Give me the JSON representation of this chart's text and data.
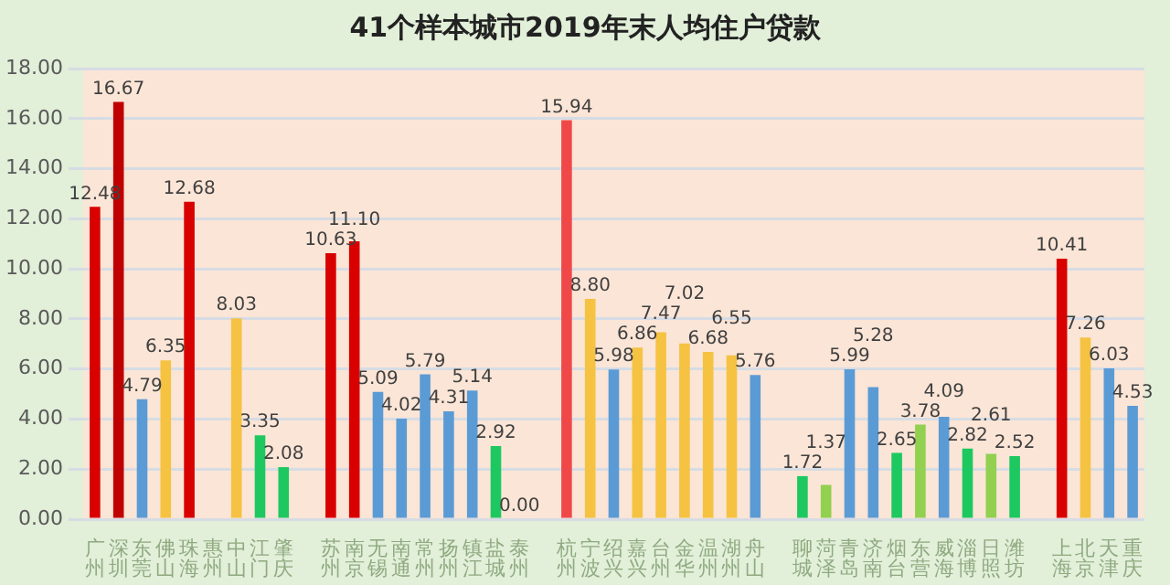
{
  "chart_data": {
    "type": "bar",
    "title": "41个样本城市2019年末人均住户贷款",
    "categories": [
      "广州",
      "深圳",
      "东莞",
      "佛山",
      "珠海",
      "惠州",
      "中山",
      "江门",
      "肇庆",
      null,
      "苏州",
      "南京",
      "无锡",
      "南通",
      "常州",
      "扬州",
      "镇江",
      "盐城",
      "泰州",
      null,
      "杭州",
      "宁波",
      "绍兴",
      "嘉兴",
      "台州",
      "金华",
      "温州",
      "湖州",
      "舟山",
      null,
      "聊城",
      "菏泽",
      "青岛",
      "济南",
      "烟台",
      "东营",
      "威海",
      "淄博",
      "日照",
      "潍坊",
      null,
      "上海",
      "北京",
      "天津",
      "重庆"
    ],
    "values": [
      12.48,
      16.67,
      4.79,
      6.35,
      12.68,
      null,
      8.03,
      3.35,
      2.08,
      null,
      10.63,
      11.1,
      5.09,
      4.02,
      5.79,
      4.31,
      5.14,
      2.92,
      0.0,
      null,
      15.94,
      8.8,
      5.98,
      6.86,
      7.47,
      7.02,
      6.68,
      6.55,
      5.76,
      null,
      1.72,
      1.37,
      5.99,
      5.28,
      2.65,
      3.78,
      4.09,
      2.82,
      2.61,
      2.52,
      null,
      10.41,
      7.26,
      6.03,
      4.53
    ],
    "value_labels": [
      "12.48",
      "16.67",
      "4.79",
      "6.35",
      "12.68",
      null,
      "8.03",
      "3.35",
      "2.08",
      null,
      "10.63",
      "11.10",
      "5.09",
      "4.02",
      "5.79",
      "4.31",
      "5.14",
      "2.92",
      "0.00",
      null,
      "15.94",
      "8.80",
      "5.98",
      "6.86",
      "7.47",
      "7.02",
      "6.68",
      "6.55",
      "5.76",
      null,
      "1.72",
      "1.37",
      "5.99",
      "5.28",
      "2.65",
      "3.78",
      "4.09",
      "2.82",
      "2.61",
      "2.52",
      null,
      "10.41",
      "7.26",
      "6.03",
      "4.53"
    ],
    "colors": [
      "#d90000",
      "#c00000",
      "#5b9bd5",
      "#f5c242",
      "#d90000",
      null,
      "#f5c242",
      "#1ec860",
      "#1ec860",
      null,
      "#d90000",
      "#d90000",
      "#5b9bd5",
      "#5b9bd5",
      "#5b9bd5",
      "#5b9bd5",
      "#5b9bd5",
      "#1ec860",
      "#1ec860",
      null,
      "#f04848",
      "#f5c242",
      "#5b9bd5",
      "#f5c242",
      "#f5c242",
      "#f5c242",
      "#f5c242",
      "#f5c242",
      "#5b9bd5",
      null,
      "#1ec860",
      "#92d050",
      "#5b9bd5",
      "#5b9bd5",
      "#1ec860",
      "#92d050",
      "#5b9bd5",
      "#1ec860",
      "#92d050",
      "#1ec860",
      null,
      "#d90000",
      "#f5c242",
      "#5b9bd5",
      "#5b9bd5"
    ],
    "ylim": [
      0,
      18
    ],
    "yticks": [
      {
        "value": 0,
        "label": "0.00"
      },
      {
        "value": 2,
        "label": "2.00"
      },
      {
        "value": 4,
        "label": "4.00"
      },
      {
        "value": 6,
        "label": "6.00"
      },
      {
        "value": 8,
        "label": "8.00"
      },
      {
        "value": 10,
        "label": "10.00"
      },
      {
        "value": 12,
        "label": "12.00"
      },
      {
        "value": 14,
        "label": "14.00"
      },
      {
        "value": 16,
        "label": "16.00"
      },
      {
        "value": 18,
        "label": "18.00"
      }
    ],
    "grid": "y",
    "legend": false
  }
}
